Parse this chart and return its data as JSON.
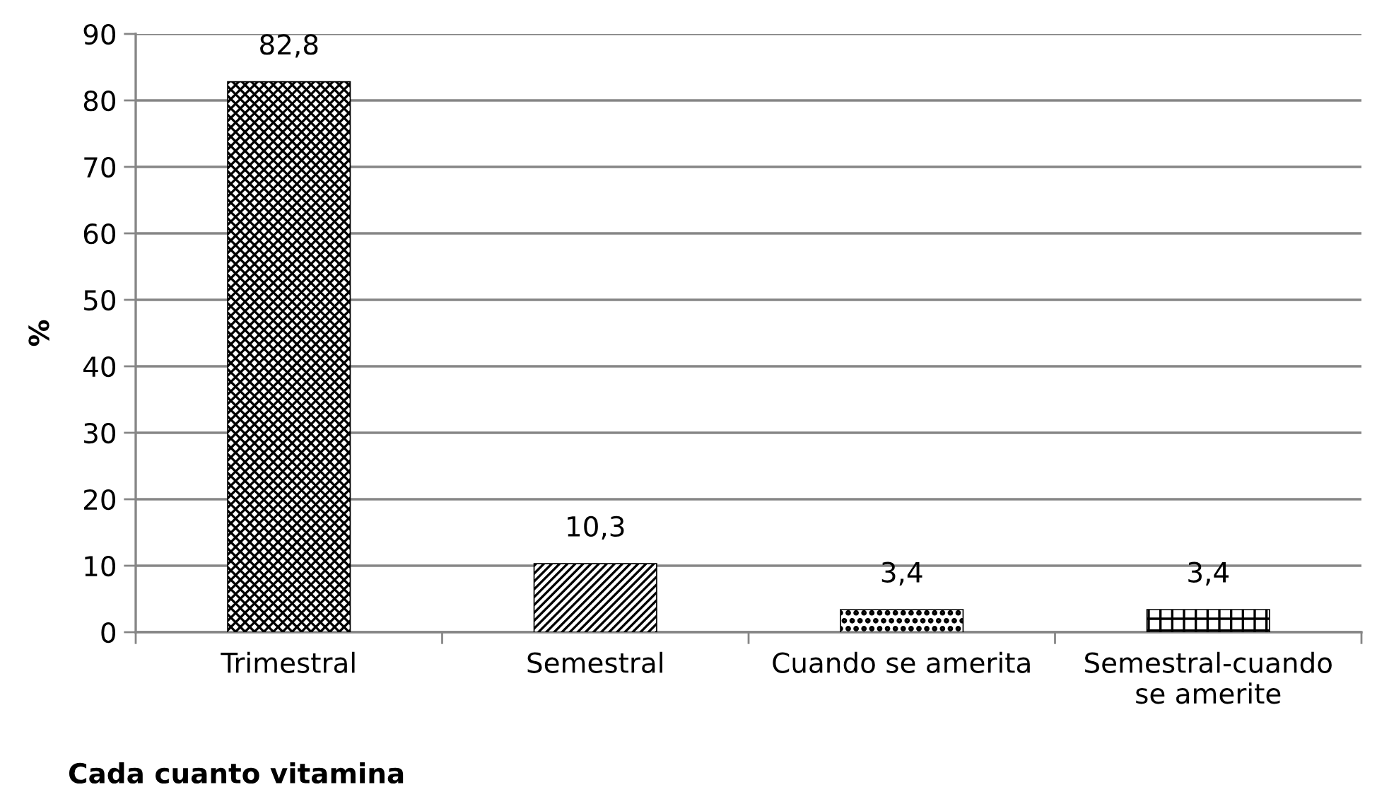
{
  "chart_data": {
    "type": "bar",
    "xlabel": "Cada cuanto vitamina",
    "ylabel": "%",
    "categories": [
      "Trimestral",
      "Semestral",
      "Cuando se amerita",
      "Semestral-cuando se amerite"
    ],
    "values": [
      82.8,
      10.3,
      3.4,
      3.4
    ],
    "value_labels": [
      "82,8",
      "10,3",
      "3,4",
      "3,4"
    ],
    "colors": [
      "#000000",
      "#000000",
      "#000000",
      "#000000"
    ],
    "ylim": [
      0,
      90
    ],
    "yticks": [
      0,
      10,
      20,
      30,
      40,
      50,
      60,
      70,
      80,
      90
    ],
    "grid": "y",
    "legend": false
  }
}
